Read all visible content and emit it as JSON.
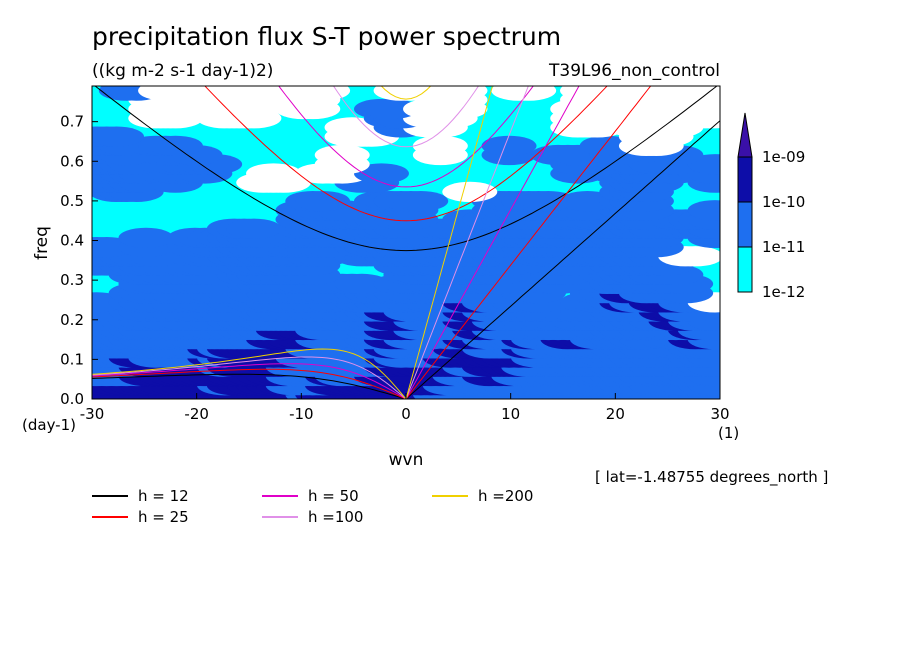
{
  "chart_data": {
    "type": "heatmap",
    "title": "precipitation flux S-T power spectrum",
    "subtitle": "((kg m-2 s-1 day-1)2)",
    "experiment": "T39L96_non_control",
    "xlabel": "wvn",
    "ylabel": "freq",
    "x_unit": "(1)",
    "y_unit": "(day-1)",
    "xlim": [
      -30,
      30
    ],
    "ylim": [
      0,
      0.79
    ],
    "x_ticks": [
      -30,
      -20,
      -10,
      0,
      10,
      20,
      30
    ],
    "y_ticks": [
      0.0,
      0.1,
      0.2,
      0.3,
      0.4,
      0.5,
      0.6,
      0.7
    ],
    "x_tick_labels": [
      "-30",
      "-20",
      "-10",
      "0",
      "10",
      "20",
      "30"
    ],
    "y_tick_labels": [
      "0.0",
      "0.1",
      "0.2",
      "0.3",
      "0.4",
      "0.5",
      "0.6",
      "0.7"
    ],
    "colorbar": {
      "levels": [
        "1e-12",
        "1e-11",
        "1e-10",
        "1e-09"
      ],
      "colors": [
        "#ffffff",
        "#00ffff",
        "#1e6ff0",
        "#0d0da8",
        "#3a10a8"
      ]
    },
    "lat_note": "[ lat=-1.48755 degrees_north ]",
    "dispersion_curves": [
      {
        "name": "h = 12",
        "color": "#000000",
        "h": 12
      },
      {
        "name": "h = 25",
        "color": "#ff0000",
        "h": 25
      },
      {
        "name": "h = 50",
        "color": "#e000c8",
        "h": 50
      },
      {
        "name": "h =100",
        "color": "#e090e8",
        "h": 100
      },
      {
        "name": "h =200",
        "color": "#f0d000",
        "h": 200
      }
    ]
  }
}
